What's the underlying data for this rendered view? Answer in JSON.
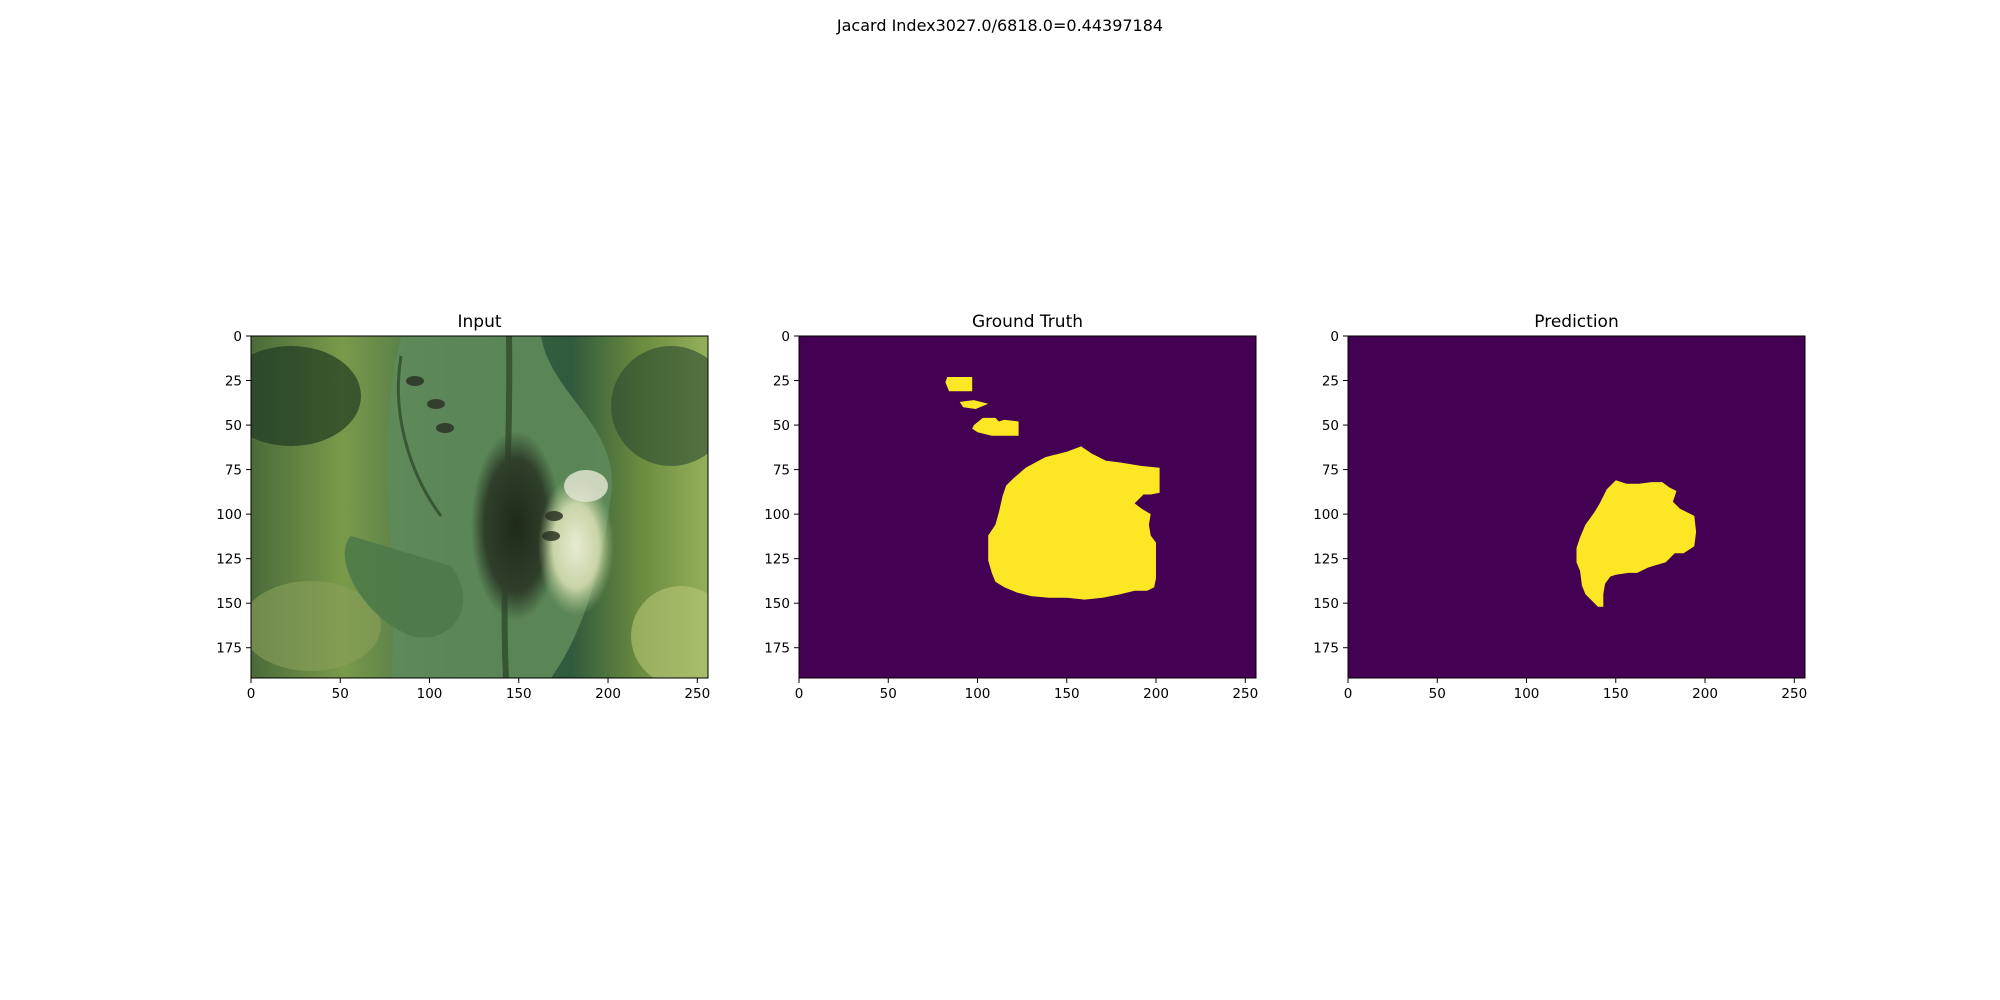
{
  "figure": {
    "suptitle": "Jacard Index3027.0/6818.0=0.44397184"
  },
  "colors": {
    "background": "#440154",
    "foreground": "#fde725",
    "axis": "#000000"
  },
  "chart_data": [
    {
      "type": "heatmap",
      "title": "Input",
      "content": "rgb photo of a tomato leaf with a dark lesion",
      "xlim": [
        0,
        256
      ],
      "ylim": [
        192,
        0
      ],
      "xticks": [
        0,
        50,
        100,
        150,
        200,
        250
      ],
      "yticks": [
        0,
        25,
        50,
        75,
        100,
        125,
        150,
        175
      ]
    },
    {
      "type": "heatmap",
      "title": "Ground Truth",
      "content": "binary mask",
      "xlim": [
        0,
        256
      ],
      "ylim": [
        192,
        0
      ],
      "xticks": [
        0,
        50,
        100,
        150,
        200,
        250
      ],
      "yticks": [
        0,
        25,
        50,
        75,
        100,
        125,
        150,
        175
      ],
      "regions": [
        [
          [
            83,
            23
          ],
          [
            97,
            23
          ],
          [
            97,
            31
          ],
          [
            84,
            31
          ],
          [
            82,
            26
          ]
        ],
        [
          [
            90,
            37
          ],
          [
            98,
            36
          ],
          [
            106,
            38
          ],
          [
            99,
            41
          ],
          [
            92,
            40
          ]
        ],
        [
          [
            98,
            50
          ],
          [
            103,
            46
          ],
          [
            110,
            46
          ],
          [
            112,
            48
          ],
          [
            115,
            47
          ],
          [
            123,
            48
          ],
          [
            123,
            56
          ],
          [
            108,
            56
          ],
          [
            100,
            54
          ],
          [
            97,
            52
          ]
        ],
        [
          [
            138,
            68
          ],
          [
            150,
            65
          ],
          [
            158,
            62
          ],
          [
            164,
            66
          ],
          [
            172,
            70
          ],
          [
            180,
            71
          ],
          [
            192,
            73
          ],
          [
            202,
            74
          ],
          [
            202,
            88
          ],
          [
            197,
            89
          ],
          [
            193,
            89
          ],
          [
            188,
            94
          ],
          [
            192,
            97
          ],
          [
            197,
            100
          ],
          [
            196,
            106
          ],
          [
            197,
            112
          ],
          [
            200,
            116
          ],
          [
            200,
            125
          ],
          [
            200,
            136
          ],
          [
            199,
            141
          ],
          [
            195,
            143
          ],
          [
            188,
            143
          ],
          [
            180,
            145
          ],
          [
            170,
            147
          ],
          [
            160,
            148
          ],
          [
            150,
            147
          ],
          [
            140,
            147
          ],
          [
            130,
            146
          ],
          [
            122,
            144
          ],
          [
            115,
            141
          ],
          [
            110,
            138
          ],
          [
            108,
            133
          ],
          [
            106,
            126
          ],
          [
            106,
            118
          ],
          [
            106,
            112
          ],
          [
            110,
            106
          ],
          [
            112,
            99
          ],
          [
            114,
            90
          ],
          [
            116,
            84
          ],
          [
            120,
            80
          ],
          [
            127,
            74
          ]
        ]
      ]
    },
    {
      "type": "heatmap",
      "title": "Prediction",
      "content": "binary mask",
      "xlim": [
        0,
        256
      ],
      "ylim": [
        192,
        0
      ],
      "xticks": [
        0,
        50,
        100,
        150,
        200,
        250
      ],
      "yticks": [
        0,
        25,
        50,
        75,
        100,
        125,
        150,
        175
      ],
      "regions": [
        [
          [
            145,
            86
          ],
          [
            150,
            81
          ],
          [
            156,
            83
          ],
          [
            163,
            83
          ],
          [
            170,
            82
          ],
          [
            176,
            82
          ],
          [
            180,
            85
          ],
          [
            184,
            87
          ],
          [
            182,
            93
          ],
          [
            186,
            97
          ],
          [
            194,
            101
          ],
          [
            195,
            110
          ],
          [
            194,
            118
          ],
          [
            188,
            122
          ],
          [
            183,
            122
          ],
          [
            178,
            127
          ],
          [
            168,
            130
          ],
          [
            162,
            133
          ],
          [
            157,
            133
          ],
          [
            150,
            134
          ],
          [
            147,
            135
          ],
          [
            144,
            139
          ],
          [
            143,
            145
          ],
          [
            143,
            152
          ],
          [
            140,
            152
          ],
          [
            137,
            149
          ],
          [
            133,
            145
          ],
          [
            131,
            140
          ],
          [
            130,
            132
          ],
          [
            128,
            127
          ],
          [
            128,
            119
          ],
          [
            130,
            113
          ],
          [
            133,
            106
          ],
          [
            138,
            99
          ],
          [
            141,
            94
          ]
        ]
      ]
    }
  ]
}
